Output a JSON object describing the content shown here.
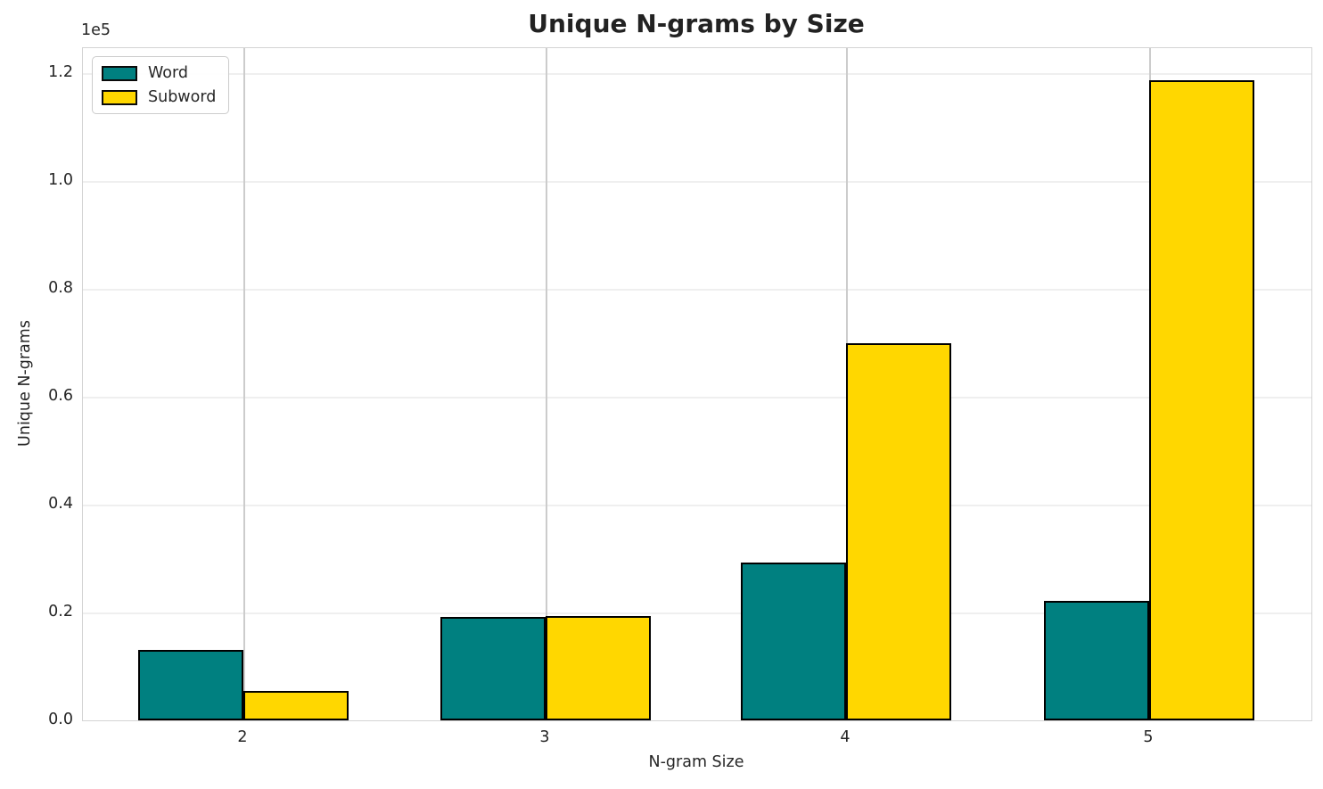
{
  "chart_data": {
    "type": "bar",
    "title": "Unique N-grams by Size",
    "xlabel": "N-gram Size",
    "ylabel": "Unique N-grams",
    "y_offset_label": "1e5",
    "categories": [
      "2",
      "3",
      "4",
      "5"
    ],
    "series": [
      {
        "name": "Word",
        "color": "#008080",
        "values": [
          13000,
          19200,
          29200,
          22100
        ]
      },
      {
        "name": "Subword",
        "color": "#FFD700",
        "values": [
          5400,
          19300,
          69900,
          118600
        ]
      }
    ],
    "bar_edge_color": "#000000",
    "bar_width_fraction": 0.35,
    "y_ticks": {
      "labels": [
        "0.0",
        "0.2",
        "0.4",
        "0.6",
        "0.8",
        "1.0",
        "1.2"
      ],
      "values": [
        0,
        20000,
        40000,
        60000,
        80000,
        100000,
        120000
      ]
    },
    "ylim": [
      0,
      124600
    ],
    "grid": true,
    "legend_position": "upper left",
    "colors": {
      "grid_horizontal": "#efefef",
      "grid_vertical": "#cccccc",
      "spine": "#d3d3d3",
      "text": "#262626"
    }
  }
}
